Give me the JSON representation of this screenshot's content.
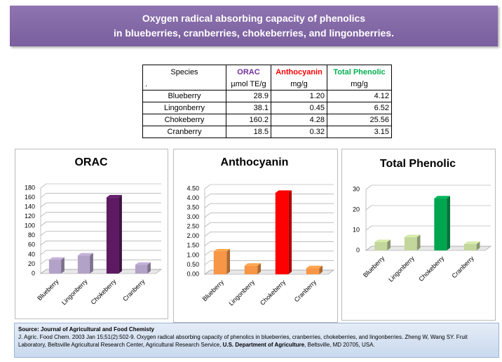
{
  "title": [
    "Oxygen radical absorbing capacity of phenolics",
    "in blueberries, cranberries, chokeberries, and lingonberries."
  ],
  "table": {
    "header": [
      "Species",
      "ORAC",
      "Anthocyanin",
      "Total Phenolic"
    ],
    "header_colors": [
      "#000000",
      "#7030a0",
      "#ff0000",
      "#00b050"
    ],
    "units": [
      ".",
      "µmol TE/g",
      "mg/g",
      "mg/g"
    ],
    "rows": [
      [
        "Blueberry",
        "28.9",
        "1.20",
        "4.12"
      ],
      [
        "Lingonberry",
        "38.1",
        "0.45",
        "6.52"
      ],
      [
        "Chokeberry",
        "160.2",
        "4.28",
        "25.56"
      ],
      [
        "Cranberry",
        "18.5",
        "0.32",
        "3.15"
      ]
    ]
  },
  "chart_data": [
    {
      "type": "bar3d",
      "title": "ORAC",
      "categories": [
        "Blueberry",
        "Lingonberry",
        "Chokeberry",
        "Cranberry"
      ],
      "values": [
        28.9,
        38.1,
        160.2,
        18.5
      ],
      "colors": [
        "#b3a2c7",
        "#b3a2c7",
        "#5d1a63",
        "#b3a2c7"
      ],
      "ylim": [
        0,
        180
      ],
      "yticks": [
        0,
        20,
        40,
        60,
        80,
        100,
        120,
        140,
        160,
        180
      ],
      "grid": true
    },
    {
      "type": "bar3d",
      "title": "Anthocyanin",
      "categories": [
        "Blueberry",
        "Lingonberry",
        "Chokeberry",
        "Cranberry"
      ],
      "values": [
        1.2,
        0.45,
        4.28,
        0.32
      ],
      "colors": [
        "#f79646",
        "#f79646",
        "#ff0000",
        "#f79646"
      ],
      "ylim": [
        0,
        4.5
      ],
      "yticks": [
        {
          "value": 0,
          "label": "0.00"
        },
        {
          "value": 0.5,
          "label": "0.50"
        },
        {
          "value": 1,
          "label": "1.00"
        },
        {
          "value": 1.5,
          "label": "1.50"
        },
        {
          "value": 2,
          "label": "2.00"
        },
        {
          "value": 2.5,
          "label": "2.50"
        },
        {
          "value": 3,
          "label": "3.00"
        },
        {
          "value": 3.5,
          "label": "3.50"
        },
        {
          "value": 4,
          "label": "4.00"
        },
        {
          "value": 4.5,
          "label": "4.50"
        }
      ],
      "grid": true
    },
    {
      "type": "bar3d",
      "title": "Total Phenolic",
      "categories": [
        "Blueberry",
        "Lingonberry",
        "Chokeberry",
        "Cranberry"
      ],
      "values": [
        4.12,
        6.52,
        25.56,
        3.15
      ],
      "colors": [
        "#c3d69b",
        "#c3d69b",
        "#00a550",
        "#c3d69b"
      ],
      "ylim": [
        0,
        30
      ],
      "yticks": [
        0,
        10,
        20,
        30
      ],
      "grid": true
    }
  ],
  "source": {
    "heading": "Source:  Journal of Agricultural and Food Chemisty",
    "citation": "J. Agric. Food Chem. 2003 Jan 15;51(2):502-9. Oxygen radical absorbing capacity of phenolics in blueberries, cranberries, chokeberries, and lingonberries.  Zheng W, Wang SY.  Fruit Laboratory, Beltsville Agricultural Research Center, Agricultural Research Service,",
    "agency": "U.S. Department of Agriculture",
    "address": ", Beltsville, MD 20705, USA."
  }
}
